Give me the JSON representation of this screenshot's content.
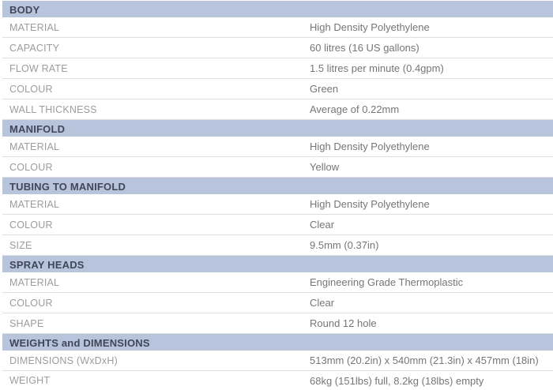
{
  "table": {
    "sections": [
      {
        "title": "BODY",
        "rows": [
          {
            "label": "MATERIAL",
            "value": "High Density Polyethylene"
          },
          {
            "label": "CAPACITY",
            "value": "60 litres (16 US gallons)"
          },
          {
            "label": "FLOW RATE",
            "value": "1.5 litres per minute (0.4gpm)"
          },
          {
            "label": "COLOUR",
            "value": "Green"
          },
          {
            "label": "WALL THICKNESS",
            "value": "Average of 0.22mm"
          }
        ]
      },
      {
        "title": "MANIFOLD",
        "rows": [
          {
            "label": "MATERIAL",
            "value": "High Density Polyethylene"
          },
          {
            "label": "COLOUR",
            "value": "Yellow"
          }
        ]
      },
      {
        "title": "TUBING TO MANIFOLD",
        "rows": [
          {
            "label": "MATERIAL",
            "value": "High Density Polyethylene"
          },
          {
            "label": "COLOUR",
            "value": "Clear"
          },
          {
            "label": "SIZE",
            "value": "9.5mm (0.37in)"
          }
        ]
      },
      {
        "title": "SPRAY HEADS",
        "rows": [
          {
            "label": "MATERIAL",
            "value": "Engineering Grade Thermoplastic"
          },
          {
            "label": "COLOUR",
            "value": "Clear"
          },
          {
            "label": "SHAPE",
            "value": "Round 12 hole"
          }
        ]
      },
      {
        "title": "WEIGHTS and DIMENSIONS",
        "rows": [
          {
            "label": "DIMENSIONS (WxDxH)",
            "value": "513mm (20.2in) x 540mm (21.3in) x 457mm (18in)"
          },
          {
            "label": "WEIGHT",
            "value": "68kg (151lbs) full, 8.2kg (18lbs) empty"
          }
        ]
      }
    ]
  },
  "colors": {
    "header_bg": "#b8c3dc",
    "header_text": "#3e4859",
    "label_text": "#9a9c9e",
    "value_text": "#747679",
    "divider": "#dcdedf",
    "bottom_line": "#c0c6d2"
  }
}
